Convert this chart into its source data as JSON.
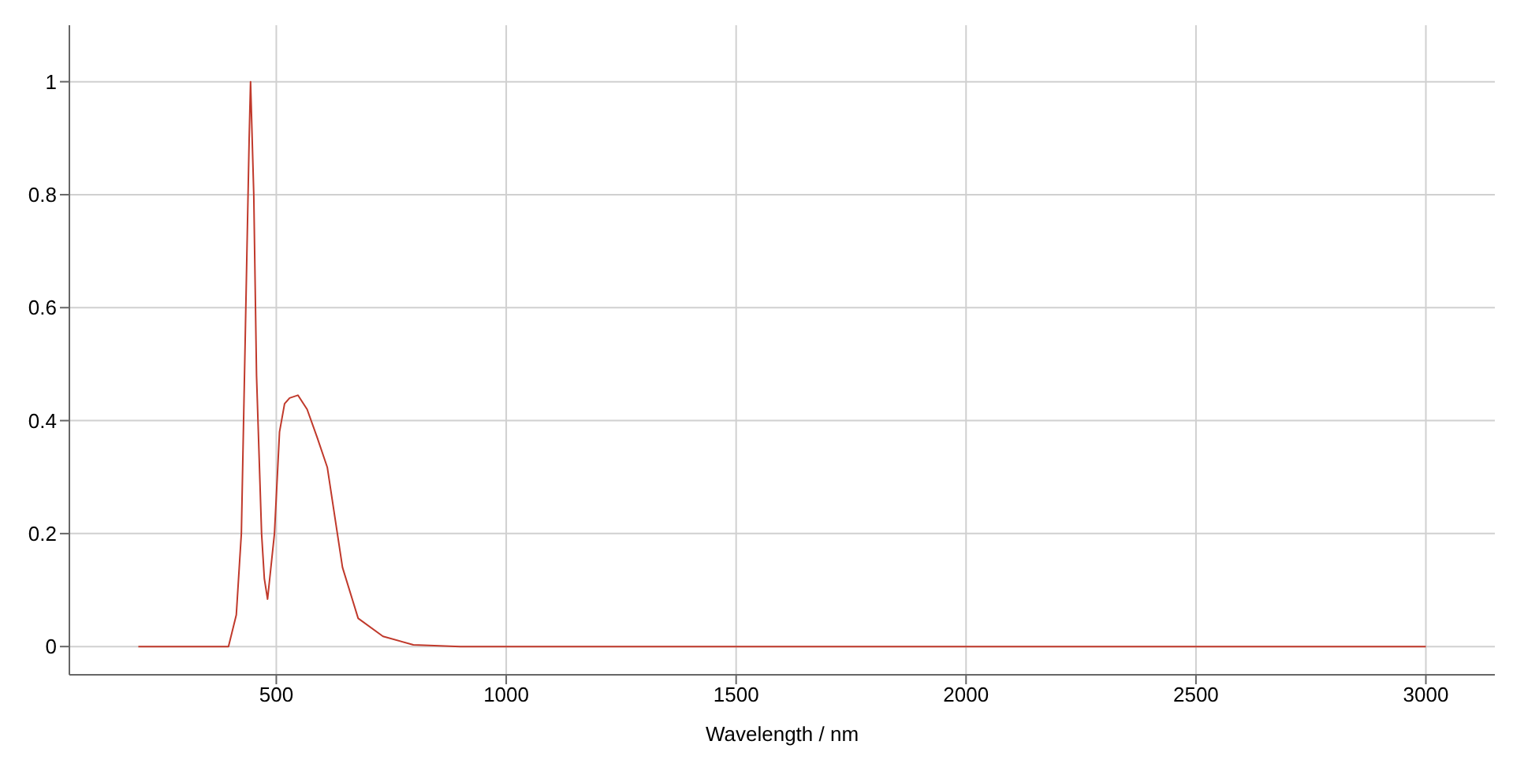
{
  "chart_data": {
    "type": "line",
    "xlabel": "Wavelength / nm",
    "x": [
      200,
      300,
      380,
      396,
      413,
      424,
      433,
      441,
      444,
      451,
      457,
      468,
      474,
      481,
      496,
      507,
      518,
      529,
      547,
      567,
      589,
      611,
      644,
      678,
      732,
      798,
      900,
      1200,
      1600,
      2000,
      2500,
      3000
    ],
    "series": [
      {
        "color": "#c0392b",
        "values": [
          0,
          0,
          0,
          0,
          0.056,
          0.2,
          0.57,
          0.9,
          1,
          0.8,
          0.48,
          0.2,
          0.12,
          0.084,
          0.2,
          0.38,
          0.43,
          0.44,
          0.445,
          0.42,
          0.37,
          0.317,
          0.14,
          0.05,
          0.018,
          0.003,
          0,
          0,
          0,
          0,
          0,
          0
        ]
      }
    ],
    "xlim": [
      50,
      3150
    ],
    "xticks": [
      500,
      1000,
      1500,
      2000,
      2500,
      3000
    ],
    "ylim": [
      -0.05,
      1.1
    ],
    "yticks": [
      0,
      0.2,
      0.4,
      0.6,
      0.8,
      1
    ],
    "grid": true,
    "line_style": "solid",
    "marker": "none"
  }
}
